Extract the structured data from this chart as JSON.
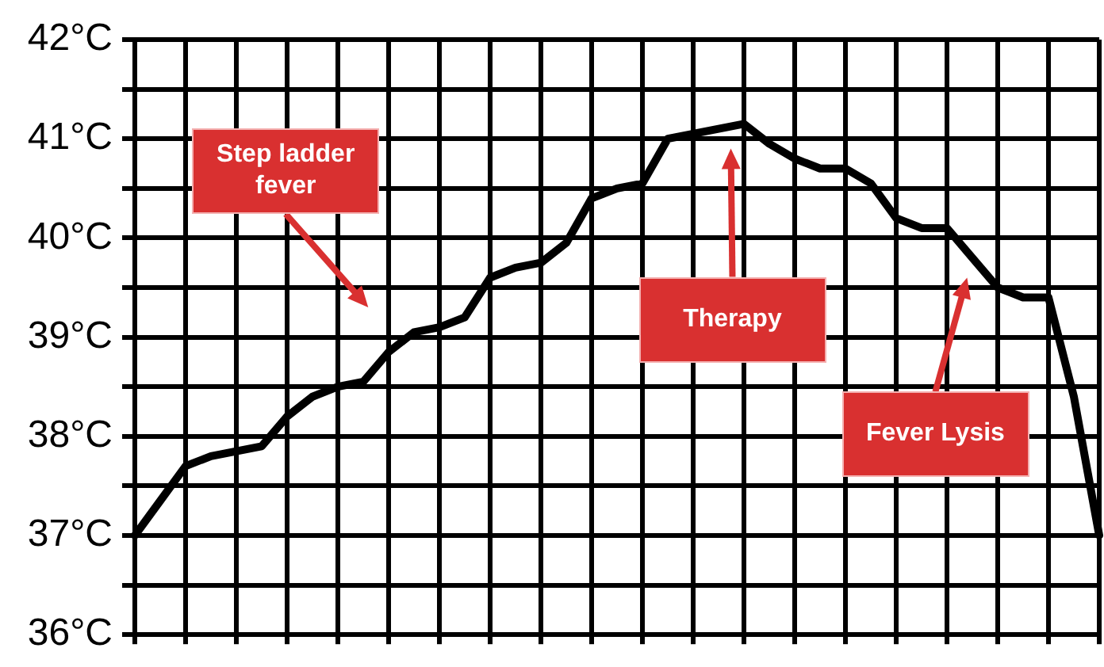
{
  "chart_data": {
    "type": "line",
    "categories": [
      null,
      null,
      null,
      null,
      null,
      null,
      null,
      null,
      null,
      null,
      null,
      null,
      null,
      null,
      null,
      null,
      null,
      null,
      null,
      null,
      null,
      null,
      null,
      null,
      null,
      null,
      null,
      null,
      null,
      null,
      null,
      null,
      null,
      null,
      null,
      null,
      null,
      null,
      null
    ],
    "series": [
      {
        "color": "#000000",
        "values": [
          37.0,
          37.35,
          37.7,
          37.8,
          37.85,
          37.9,
          38.2,
          38.4,
          38.5,
          38.55,
          38.85,
          39.05,
          39.1,
          39.2,
          39.6,
          39.7,
          39.75,
          39.95,
          40.4,
          40.5,
          40.55,
          41.0,
          41.05,
          41.1,
          41.15,
          40.95,
          40.8,
          40.7,
          40.7,
          40.55,
          40.2,
          40.1,
          40.1,
          39.8,
          39.5,
          39.4,
          39.4,
          38.4,
          37.0
        ]
      }
    ],
    "ylim": [
      36,
      42
    ],
    "yticks": [
      {
        "value": 36,
        "label": "36°C"
      },
      {
        "value": 36.5,
        "label": null
      },
      {
        "value": 37,
        "label": "37°C"
      },
      {
        "value": 37.5,
        "label": null
      },
      {
        "value": 38,
        "label": "38°C"
      },
      {
        "value": 38.5,
        "label": null
      },
      {
        "value": 39,
        "label": "39°C"
      },
      {
        "value": 39.5,
        "label": null
      },
      {
        "value": 40,
        "label": "40°C"
      },
      {
        "value": 40.5,
        "label": null
      },
      {
        "value": 41,
        "label": "41°C"
      },
      {
        "value": 41.5,
        "label": null
      },
      {
        "value": 42,
        "label": "42°C"
      }
    ],
    "tick_labels": "y",
    "grid": true,
    "legend": false,
    "marker": "none",
    "line_style": "solid",
    "annotations": [
      "Step ladder fever",
      "Therapy",
      "Fever Lysis"
    ]
  }
}
